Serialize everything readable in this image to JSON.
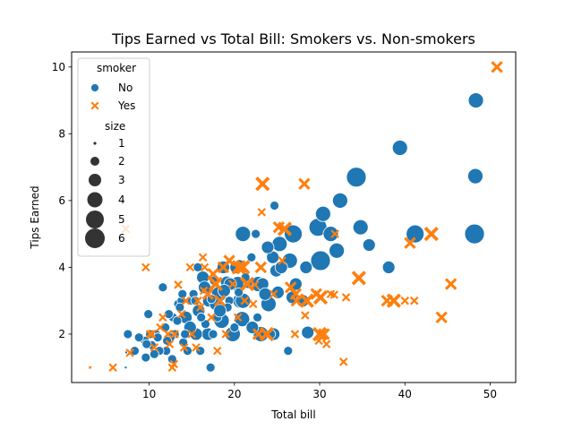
{
  "chart_data": {
    "type": "scatter",
    "title": "Tips Earned vs Total Bill: Smokers vs. Non-smokers",
    "xlabel": "Total bill",
    "ylabel": "Tips Earned",
    "xlim": [
      0.9,
      53.0
    ],
    "ylim": [
      0.55,
      10.45
    ],
    "xticks": [
      "10",
      "20",
      "30",
      "40",
      "50"
    ],
    "yticks": [
      "2",
      "4",
      "6",
      "8",
      "10"
    ],
    "grid": false,
    "legend_position": "top-left",
    "legend": {
      "hue_title": "smoker",
      "hue_entries": [
        {
          "label": "No",
          "color": "#1f77b4",
          "marker": "circle"
        },
        {
          "label": "Yes",
          "color": "#ff7f0e",
          "marker": "x"
        }
      ],
      "size_title": "size",
      "size_entries": [
        "1",
        "2",
        "3",
        "4",
        "5",
        "6"
      ]
    },
    "series": [
      {
        "name": "No",
        "color": "#1f77b4",
        "marker": "circle",
        "points": [
          [
            48.27,
            6.73,
            4
          ],
          [
            48.17,
            5.0,
            6
          ],
          [
            48.33,
            9.0,
            4
          ],
          [
            39.42,
            7.58,
            4
          ],
          [
            34.3,
            6.7,
            6
          ],
          [
            32.4,
            6.0,
            4
          ],
          [
            34.8,
            5.2,
            4
          ],
          [
            29.8,
            5.2,
            5
          ],
          [
            41.2,
            5.0,
            5
          ],
          [
            21.0,
            5.0,
            4
          ],
          [
            26.9,
            5.0,
            5
          ],
          [
            30.4,
            5.6,
            4
          ],
          [
            31.3,
            5.0,
            4
          ],
          [
            35.8,
            4.67,
            3
          ],
          [
            30.1,
            4.2,
            6
          ],
          [
            25.3,
            4.7,
            4
          ],
          [
            24.5,
            4.3,
            3
          ],
          [
            32.0,
            4.5,
            4
          ],
          [
            38.1,
            4.0,
            3
          ],
          [
            26.5,
            4.2,
            4
          ],
          [
            22.8,
            3.5,
            4
          ],
          [
            28.4,
            4.0,
            3
          ],
          [
            20.4,
            3.5,
            4
          ],
          [
            24.9,
            3.9,
            3
          ],
          [
            23.3,
            3.5,
            3
          ],
          [
            24.0,
            2.9,
            4
          ],
          [
            25.1,
            3.25,
            3
          ],
          [
            20.9,
            2.45,
            4
          ],
          [
            19.8,
            2.0,
            4
          ],
          [
            23.1,
            2.0,
            4
          ],
          [
            24.6,
            2.0,
            3
          ],
          [
            28.6,
            2.05,
            3
          ],
          [
            26.3,
            1.5,
            2
          ],
          [
            20.7,
            3.0,
            4
          ],
          [
            18.2,
            3.2,
            4
          ],
          [
            17.0,
            3.0,
            3
          ],
          [
            16.3,
            3.7,
            3
          ],
          [
            19.1,
            3.55,
            3
          ],
          [
            17.8,
            2.9,
            3
          ],
          [
            18.5,
            2.4,
            4
          ],
          [
            16.9,
            2.0,
            3
          ],
          [
            15.5,
            2.0,
            3
          ],
          [
            14.3,
            2.5,
            3
          ],
          [
            15.0,
            3.0,
            2
          ],
          [
            13.4,
            2.9,
            2
          ],
          [
            12.8,
            2.5,
            2
          ],
          [
            12.0,
            1.5,
            2
          ],
          [
            10.3,
            1.67,
            2
          ],
          [
            10.8,
            2.0,
            2
          ],
          [
            11.2,
            1.5,
            2
          ],
          [
            9.6,
            1.3,
            2
          ],
          [
            8.3,
            1.5,
            2
          ],
          [
            9.9,
            2.6,
            2
          ],
          [
            11.6,
            3.4,
            2
          ],
          [
            13.0,
            2.0,
            2
          ],
          [
            14.5,
            1.5,
            2
          ],
          [
            17.2,
            1.0,
            2
          ],
          [
            16.0,
            1.5,
            2
          ],
          [
            18.0,
            2.5,
            2
          ],
          [
            19.4,
            3.0,
            2
          ],
          [
            21.5,
            3.0,
            2
          ],
          [
            22.5,
            5.0,
            2
          ],
          [
            24.7,
            5.85,
            2
          ],
          [
            27.2,
            3.5,
            3
          ],
          [
            22.1,
            2.2,
            3
          ],
          [
            20.2,
            4.0,
            3
          ],
          [
            19.5,
            3.5,
            3
          ],
          [
            21.0,
            3.0,
            4
          ],
          [
            18.7,
            4.0,
            3
          ],
          [
            16.5,
            3.4,
            3
          ],
          [
            15.8,
            2.7,
            3
          ],
          [
            14.8,
            2.2,
            3
          ],
          [
            13.8,
            3.0,
            2
          ],
          [
            12.5,
            1.9,
            2
          ],
          [
            11.0,
            1.9,
            2
          ],
          [
            10.1,
            2.0,
            2
          ],
          [
            9.5,
            1.8,
            2
          ],
          [
            7.5,
            2.0,
            2
          ],
          [
            7.3,
            1.45,
            1
          ],
          [
            8.8,
            1.9,
            2
          ],
          [
            12.7,
            1.25,
            2
          ],
          [
            13.9,
            3.2,
            2
          ],
          [
            15.7,
            4.0,
            2
          ],
          [
            17.6,
            3.6,
            2
          ],
          [
            20.6,
            4.1,
            2
          ],
          [
            22.0,
            4.3,
            2
          ],
          [
            23.9,
            4.6,
            3
          ],
          [
            25.5,
            4.0,
            3
          ],
          [
            15.2,
            3.2,
            2
          ],
          [
            14.0,
            1.75,
            2
          ],
          [
            16.6,
            2.3,
            2
          ],
          [
            18.8,
            3.3,
            3
          ],
          [
            21.6,
            3.5,
            2
          ],
          [
            17.5,
            2.0,
            2
          ],
          [
            19.2,
            2.8,
            2
          ],
          [
            13.3,
            2.4,
            2
          ],
          [
            10.6,
            1.4,
            2
          ],
          [
            11.9,
            2.2,
            2
          ],
          [
            7.25,
            1.0,
            1
          ],
          [
            12.3,
            2.6,
            2
          ],
          [
            14.2,
            2.0,
            2
          ],
          [
            16.1,
            2.5,
            2
          ],
          [
            17.3,
            3.05,
            2
          ],
          [
            18.3,
            2.7,
            3
          ],
          [
            20.0,
            2.2,
            2
          ],
          [
            21.3,
            3.7,
            2
          ],
          [
            23.6,
            3.2,
            3
          ],
          [
            26.8,
            3.1,
            3
          ],
          [
            28.0,
            3.0,
            3
          ],
          [
            22.7,
            2.5,
            2
          ],
          [
            24.3,
            2.0,
            2
          ],
          [
            20.5,
            3.25,
            2
          ],
          [
            15.4,
            3.0,
            2
          ],
          [
            12.1,
            1.8,
            2
          ],
          [
            9.7,
            1.7,
            2
          ],
          [
            13.6,
            2.8,
            2
          ]
        ]
      },
      {
        "name": "Yes",
        "color": "#ff7f0e",
        "marker": "x",
        "points": [
          [
            50.8,
            10.0,
            3
          ],
          [
            23.3,
            6.5,
            4
          ],
          [
            28.2,
            6.5,
            3
          ],
          [
            23.2,
            5.65,
            2
          ],
          [
            25.9,
            5.15,
            4
          ],
          [
            7.25,
            5.15,
            2
          ],
          [
            40.6,
            4.73,
            3
          ],
          [
            43.1,
            5.0,
            4
          ],
          [
            31.8,
            5.0,
            2
          ],
          [
            34.6,
            3.68,
            4
          ],
          [
            38.7,
            3.0,
            4
          ],
          [
            37.9,
            3.0,
            3
          ],
          [
            44.3,
            2.5,
            3
          ],
          [
            45.4,
            3.5,
            3
          ],
          [
            41.1,
            3.0,
            2
          ],
          [
            27.3,
            3.0,
            3
          ],
          [
            30.1,
            3.1,
            4
          ],
          [
            29.6,
            3.2,
            3
          ],
          [
            28.3,
            2.56,
            2
          ],
          [
            30.0,
            2.0,
            4
          ],
          [
            30.5,
            2.0,
            3
          ],
          [
            32.8,
            1.17,
            2
          ],
          [
            31.7,
            3.18,
            2
          ],
          [
            27.1,
            2.0,
            2
          ],
          [
            23.8,
            2.0,
            4
          ],
          [
            22.8,
            2.0,
            3
          ],
          [
            26.6,
            3.4,
            3
          ],
          [
            22.4,
            3.48,
            2
          ],
          [
            23.1,
            4.0,
            3
          ],
          [
            20.5,
            4.0,
            4
          ],
          [
            18.7,
            4.0,
            3
          ],
          [
            17.8,
            3.5,
            4
          ],
          [
            19.4,
            4.2,
            3
          ],
          [
            16.3,
            4.3,
            2
          ],
          [
            16.5,
            4.0,
            2
          ],
          [
            14.8,
            4.0,
            2
          ],
          [
            9.6,
            4.0,
            2
          ],
          [
            13.4,
            3.48,
            2
          ],
          [
            15.7,
            3.0,
            2
          ],
          [
            16.9,
            3.2,
            3
          ],
          [
            17.3,
            2.5,
            2
          ],
          [
            19.0,
            2.0,
            2
          ],
          [
            18.3,
            3.0,
            3
          ],
          [
            15.0,
            2.0,
            2
          ],
          [
            12.2,
            2.0,
            2
          ],
          [
            13.0,
            2.0,
            2
          ],
          [
            11.6,
            2.5,
            2
          ],
          [
            10.1,
            2.0,
            2
          ],
          [
            10.6,
            1.6,
            2
          ],
          [
            12.9,
            1.1,
            2
          ],
          [
            14.1,
            1.6,
            2
          ],
          [
            7.74,
            1.44,
            2
          ],
          [
            5.75,
            1.0,
            2
          ],
          [
            3.07,
            1.0,
            1
          ],
          [
            12.7,
            1.0,
            2
          ],
          [
            15.5,
            1.6,
            2
          ],
          [
            13.8,
            2.6,
            2
          ],
          [
            11.3,
            2.2,
            2
          ],
          [
            19.8,
            3.5,
            2
          ],
          [
            21.2,
            3.0,
            2
          ],
          [
            22.2,
            2.9,
            2
          ],
          [
            24.6,
            3.2,
            2
          ],
          [
            25.6,
            4.2,
            2
          ],
          [
            20.4,
            2.5,
            2
          ],
          [
            17.5,
            3.8,
            3
          ],
          [
            16.0,
            2.8,
            2
          ],
          [
            21.0,
            4.0,
            4
          ],
          [
            21.5,
            3.5,
            4
          ],
          [
            25.2,
            5.2,
            3
          ],
          [
            28.5,
            3.0,
            4
          ],
          [
            27.2,
            3.2,
            3
          ],
          [
            31.3,
            3.2,
            2
          ],
          [
            33.1,
            3.1,
            2
          ],
          [
            40.0,
            3.0,
            2
          ],
          [
            29.9,
            1.8,
            2
          ],
          [
            30.8,
            1.7,
            2
          ],
          [
            23.1,
            4.0,
            2
          ],
          [
            14.3,
            3.0,
            2
          ],
          [
            16.4,
            3.3,
            2
          ],
          [
            12.4,
            1.7,
            2
          ],
          [
            18.0,
            1.5,
            2
          ],
          [
            10.3,
            2.0,
            2
          ]
        ]
      }
    ]
  }
}
